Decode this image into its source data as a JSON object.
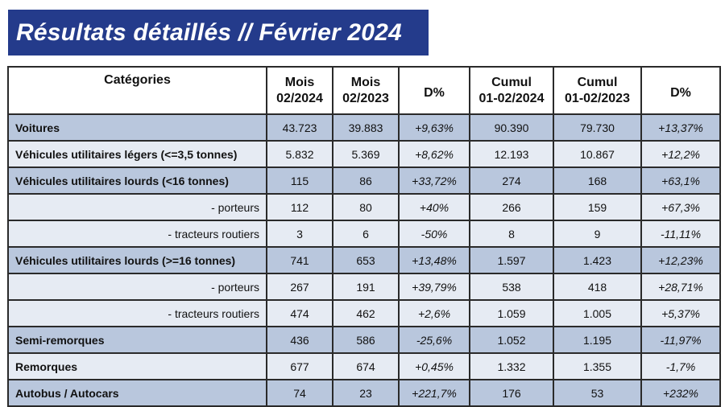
{
  "title": "Résultats détaillés // Février 2024",
  "headers": [
    "Catégories",
    "Mois\n02/2024",
    "Mois\n02/2023",
    "D%",
    "Cumul\n01-02/2024",
    "Cumul\n01-02/2023",
    "D%"
  ],
  "colors": {
    "title_bg": "#243b8b",
    "row_dark": "#b9c7dd",
    "row_light": "#e6ebf3"
  },
  "rows": [
    {
      "label": "Voitures",
      "style": "dark",
      "values": [
        "43.723",
        "39.883",
        "+9,63%",
        "90.390",
        "79.730",
        "+13,37%"
      ]
    },
    {
      "label": "Véhicules utilitaires légers (<=3,5 tonnes)",
      "style": "light",
      "values": [
        "5.832",
        "5.369",
        "+8,62%",
        "12.193",
        "10.867",
        "+12,2%"
      ]
    },
    {
      "label": "Véhicules utilitaires lourds (<16 tonnes)",
      "style": "dark",
      "values": [
        "115",
        "86",
        "+33,72%",
        "274",
        "168",
        "+63,1%"
      ]
    },
    {
      "label": "- porteurs",
      "style": "light-sub",
      "values": [
        "112",
        "80",
        "+40%",
        "266",
        "159",
        "+67,3%"
      ]
    },
    {
      "label": "- tracteurs routiers",
      "style": "light-sub",
      "values": [
        "3",
        "6",
        "-50%",
        "8",
        "9",
        "-11,11%"
      ]
    },
    {
      "label": "Véhicules utilitaires lourds (>=16 tonnes)",
      "style": "dark",
      "values": [
        "741",
        "653",
        "+13,48%",
        "1.597",
        "1.423",
        "+12,23%"
      ]
    },
    {
      "label": "- porteurs",
      "style": "light-sub",
      "values": [
        "267",
        "191",
        "+39,79%",
        "538",
        "418",
        "+28,71%"
      ]
    },
    {
      "label": "- tracteurs routiers",
      "style": "light-sub",
      "values": [
        "474",
        "462",
        "+2,6%",
        "1.059",
        "1.005",
        "+5,37%"
      ]
    },
    {
      "label": "Semi-remorques",
      "style": "dark",
      "values": [
        "436",
        "586",
        "-25,6%",
        "1.052",
        "1.195",
        "-11,97%"
      ]
    },
    {
      "label": "Remorques",
      "style": "light",
      "values": [
        "677",
        "674",
        "+0,45%",
        "1.332",
        "1.355",
        "-1,7%"
      ]
    },
    {
      "label": "Autobus / Autocars",
      "style": "dark",
      "values": [
        "74",
        "23",
        "+221,7%",
        "176",
        "53",
        "+232%"
      ]
    }
  ]
}
